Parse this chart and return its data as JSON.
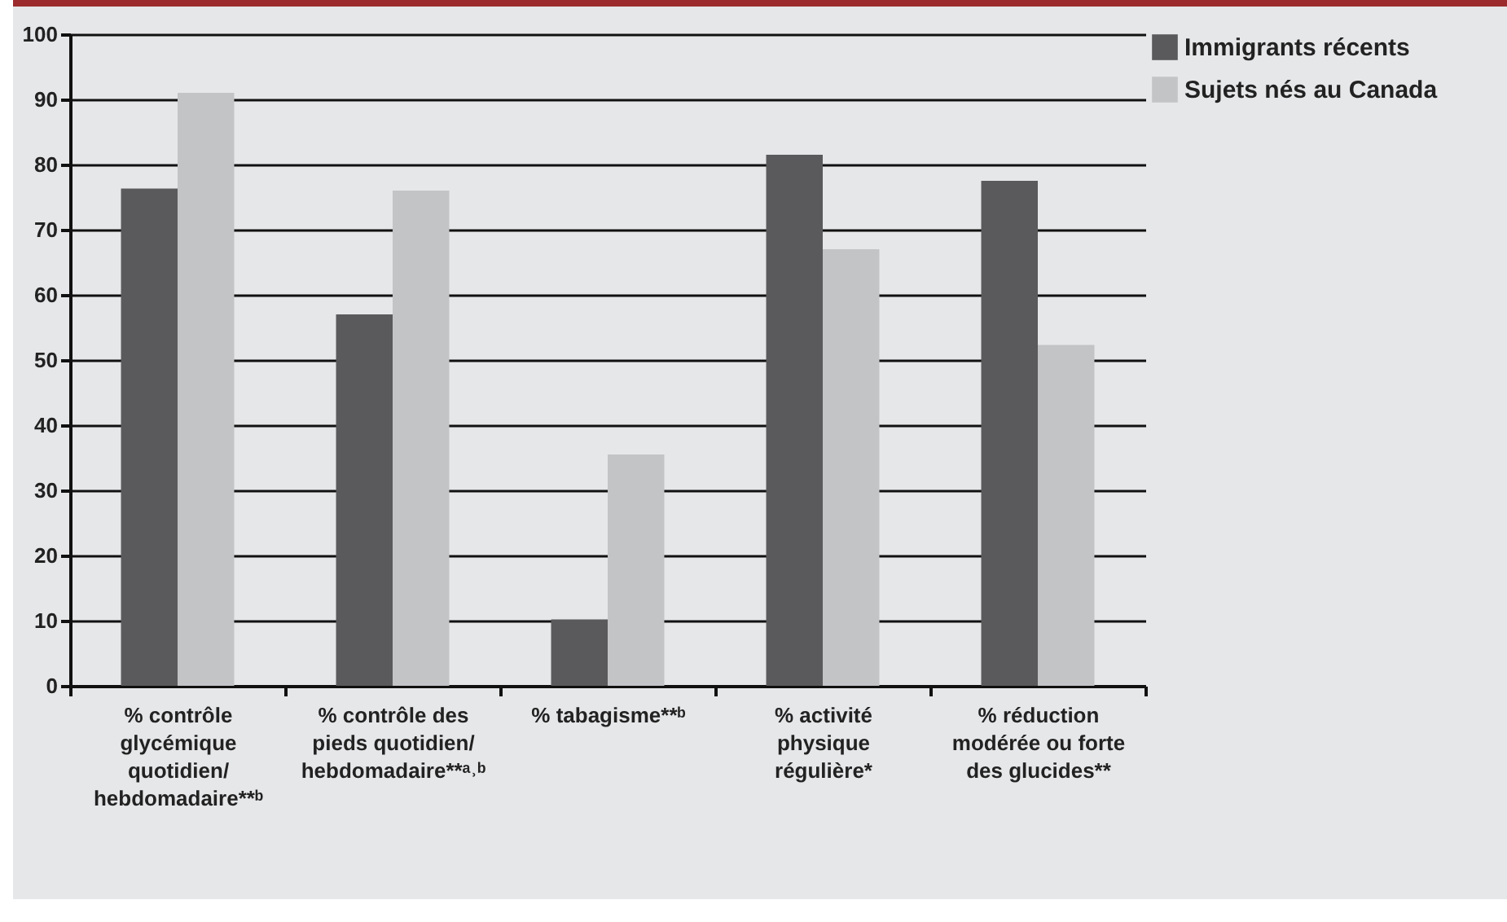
{
  "chart_data": {
    "type": "bar",
    "categories": [
      "% contrôle glycémique quotidien/ hebdomadaire**ᵇ",
      "% contrôle des pieds quotidien/ hebdomadaire**ᵃ˒ᵇ",
      "% tabagisme**ᵇ",
      "% activité physique régulière*",
      "% réduction modérée ou forte des glucides**"
    ],
    "series": [
      {
        "name": "Immigrants récents",
        "color": "#5a5a5c",
        "values": [
          76.3,
          57,
          10.2,
          81.5,
          77.5
        ]
      },
      {
        "name": "Sujets nés au Canada",
        "color": "#c3c4c6",
        "values": [
          91,
          76,
          35.5,
          67,
          52.3
        ]
      }
    ],
    "ylim": [
      0,
      100
    ],
    "yticks": [
      0,
      10,
      20,
      30,
      40,
      50,
      60,
      70,
      80,
      90,
      100
    ],
    "grid": "y",
    "legend": "right"
  }
}
